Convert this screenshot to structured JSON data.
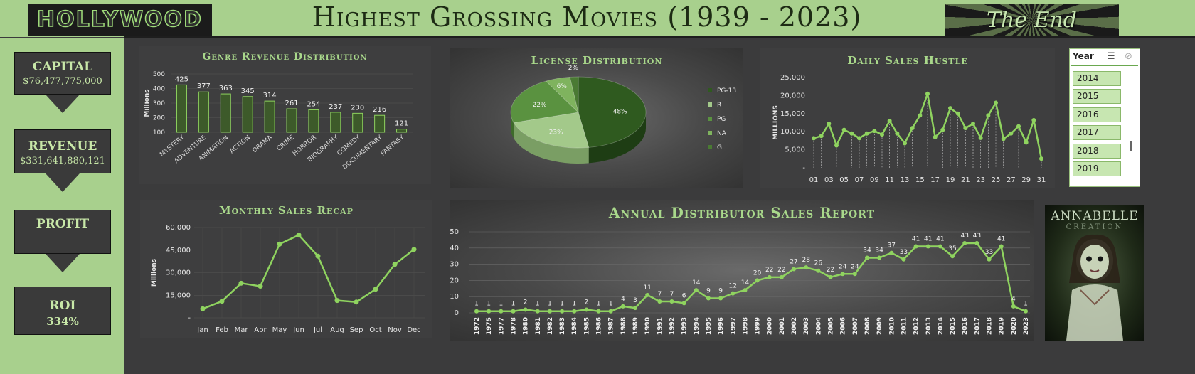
{
  "header": {
    "logo": "HOLLYWOOD",
    "title": "Highest Grossing Movies (1939 - 2023)",
    "end_text": "The End"
  },
  "kpis": {
    "capital_label": "CAPITAL",
    "capital_value": "$76,477,775,000",
    "revenue_label": "REVENUE",
    "revenue_value": "$331,641,880,121",
    "profit_label": "PROFIT",
    "roi_label": "ROI",
    "roi_value": "334%"
  },
  "slicer": {
    "title": "Year",
    "items": [
      "2014",
      "2015",
      "2016",
      "2017",
      "2018",
      "2019"
    ],
    "icons": [
      "multi-select-icon",
      "clear-filter-icon"
    ]
  },
  "poster": {
    "title": "ANNABELLE",
    "subtitle": "CREATION"
  },
  "colors": {
    "accent": "#8fd35f",
    "panel": "#3e3e3f",
    "sidebar": "#a8d08d",
    "kpi_text": "#c8e8a8",
    "title_green": "#a9d88b"
  },
  "chart_data": [
    {
      "id": "genre",
      "type": "bar",
      "title": "Genre Revenue Distribution",
      "ylabel": "Millions",
      "categories": [
        "MYSTERY",
        "ADVENTURE",
        "ANIMATION",
        "ACTION",
        "DRAMA",
        "CRIME",
        "HORROR",
        "BIOGRAPHY",
        "COMEDY",
        "DOCUMENTARY",
        "FANTASY"
      ],
      "values": [
        425,
        377,
        363,
        345,
        314,
        261,
        254,
        237,
        230,
        216,
        121
      ],
      "yticks": [
        "500",
        "400",
        "300",
        "200",
        "100"
      ],
      "ylim": [
        100,
        500
      ]
    },
    {
      "id": "license",
      "type": "pie",
      "title": "License Distribution",
      "labels": [
        "PG-13",
        "R",
        "PG",
        "NA",
        "G"
      ],
      "values": [
        48,
        23,
        22,
        6,
        2
      ],
      "value_labels": [
        "48%",
        "23%",
        "22%",
        "6%",
        "2%"
      ],
      "legend": "right"
    },
    {
      "id": "daily",
      "type": "line",
      "title": "Daily Sales Hustle",
      "ylabel": "MILLIONS",
      "x": [
        "01",
        "02",
        "03",
        "04",
        "05",
        "06",
        "07",
        "08",
        "09",
        "10",
        "11",
        "12",
        "13",
        "14",
        "15",
        "16",
        "17",
        "18",
        "19",
        "20",
        "21",
        "22",
        "23",
        "24",
        "25",
        "26",
        "27",
        "28",
        "29",
        "30",
        "31"
      ],
      "xticks": [
        "01",
        "03",
        "05",
        "07",
        "09",
        "11",
        "13",
        "15",
        "17",
        "19",
        "21",
        "23",
        "25",
        "27",
        "29",
        "31"
      ],
      "values": [
        8200,
        8800,
        12200,
        6200,
        10500,
        9500,
        8200,
        9500,
        10200,
        9200,
        13000,
        9500,
        6800,
        11000,
        14500,
        20500,
        8500,
        10500,
        16500,
        15000,
        11000,
        12200,
        8300,
        14500,
        18000,
        8000,
        9500,
        11500,
        7000,
        13200,
        2500
      ],
      "yticks": [
        "25,000",
        "20,000",
        "15,000",
        "10,000",
        "5,000",
        "-"
      ],
      "ylim": [
        0,
        25000
      ]
    },
    {
      "id": "monthly",
      "type": "line",
      "title": "Monthly Sales Recap",
      "ylabel": "Millions",
      "categories": [
        "Jan",
        "Feb",
        "Mar",
        "Apr",
        "May",
        "Jun",
        "Jul",
        "Aug",
        "Sep",
        "Oct",
        "Nov",
        "Dec"
      ],
      "values": [
        6000,
        11000,
        23000,
        21000,
        49000,
        55000,
        41000,
        11500,
        10500,
        19000,
        35500,
        45500
      ],
      "yticks": [
        "60,000",
        "45,000",
        "30,000",
        "15,000",
        "-"
      ],
      "ylim": [
        0,
        60000
      ]
    },
    {
      "id": "annual",
      "type": "line",
      "title": "Annual Distributor Sales Report",
      "categories": [
        "1972",
        "1975",
        "1977",
        "1978",
        "1980",
        "1981",
        "1982",
        "1983",
        "1984",
        "1985",
        "1986",
        "1987",
        "1988",
        "1989",
        "1990",
        "1991",
        "1992",
        "1993",
        "1994",
        "1995",
        "1996",
        "1997",
        "1998",
        "1999",
        "2000",
        "2001",
        "2002",
        "2003",
        "2004",
        "2005",
        "2006",
        "2007",
        "2008",
        "2009",
        "2010",
        "2011",
        "2012",
        "2013",
        "2014",
        "2015",
        "2016",
        "2017",
        "2018",
        "2019",
        "2020",
        "2023"
      ],
      "values": [
        1,
        1,
        1,
        1,
        2,
        1,
        1,
        1,
        1,
        2,
        1,
        1,
        4,
        3,
        11,
        7,
        7,
        6,
        14,
        9,
        9,
        12,
        14,
        20,
        22,
        22,
        27,
        28,
        26,
        22,
        24,
        24,
        34,
        34,
        37,
        33,
        41,
        41,
        41,
        35,
        43,
        43,
        33,
        41,
        4,
        1
      ],
      "value_labels": [
        "1",
        "1",
        "1",
        "1",
        "2",
        "1",
        "1",
        "1",
        "1",
        "2",
        "1",
        "1",
        "4",
        "3",
        "11",
        "7",
        "7",
        "6",
        "14",
        "9",
        "9",
        "12",
        "14",
        "20",
        "22",
        "22",
        "27",
        "28",
        "26",
        "22",
        "24",
        "24",
        "34",
        "34",
        "37",
        "33",
        "41",
        "41",
        "41",
        "35",
        "43",
        "43",
        "33",
        "41",
        "4",
        "1"
      ],
      "yticks": [
        "50",
        "40",
        "30",
        "20",
        "10",
        "0"
      ],
      "ylim": [
        0,
        50
      ]
    }
  ]
}
